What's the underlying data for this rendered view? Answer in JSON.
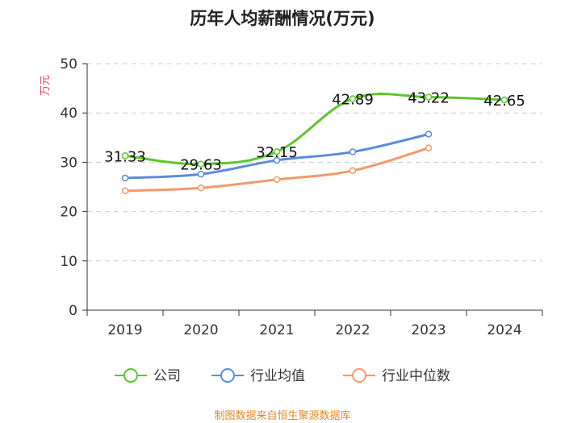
{
  "chart_data": {
    "type": "line",
    "title": "历年人均薪酬情况(万元)",
    "ylabel": "万元",
    "xlabel": "",
    "ylim": [
      0,
      50
    ],
    "yticks": [
      0,
      10,
      20,
      30,
      40,
      50
    ],
    "categories": [
      "2019",
      "2020",
      "2021",
      "2022",
      "2023",
      "2024"
    ],
    "grid": true,
    "legend_position": "bottom",
    "series": [
      {
        "name": "公司",
        "color": "#5cc72d",
        "values": [
          31.33,
          29.63,
          32.15,
          42.89,
          43.22,
          42.65
        ],
        "labels": [
          "31.33",
          "29.63",
          "32.15",
          "42.89",
          "43.22",
          "42.65"
        ]
      },
      {
        "name": "行业均值",
        "color": "#5b8be0",
        "values": [
          26.8,
          27.6,
          30.4,
          32.1,
          35.7,
          null
        ]
      },
      {
        "name": "行业中位数",
        "color": "#f5996a",
        "values": [
          24.2,
          24.8,
          26.5,
          28.3,
          32.9,
          null
        ]
      }
    ],
    "source": "制图数据来自恒生聚源数据库"
  }
}
